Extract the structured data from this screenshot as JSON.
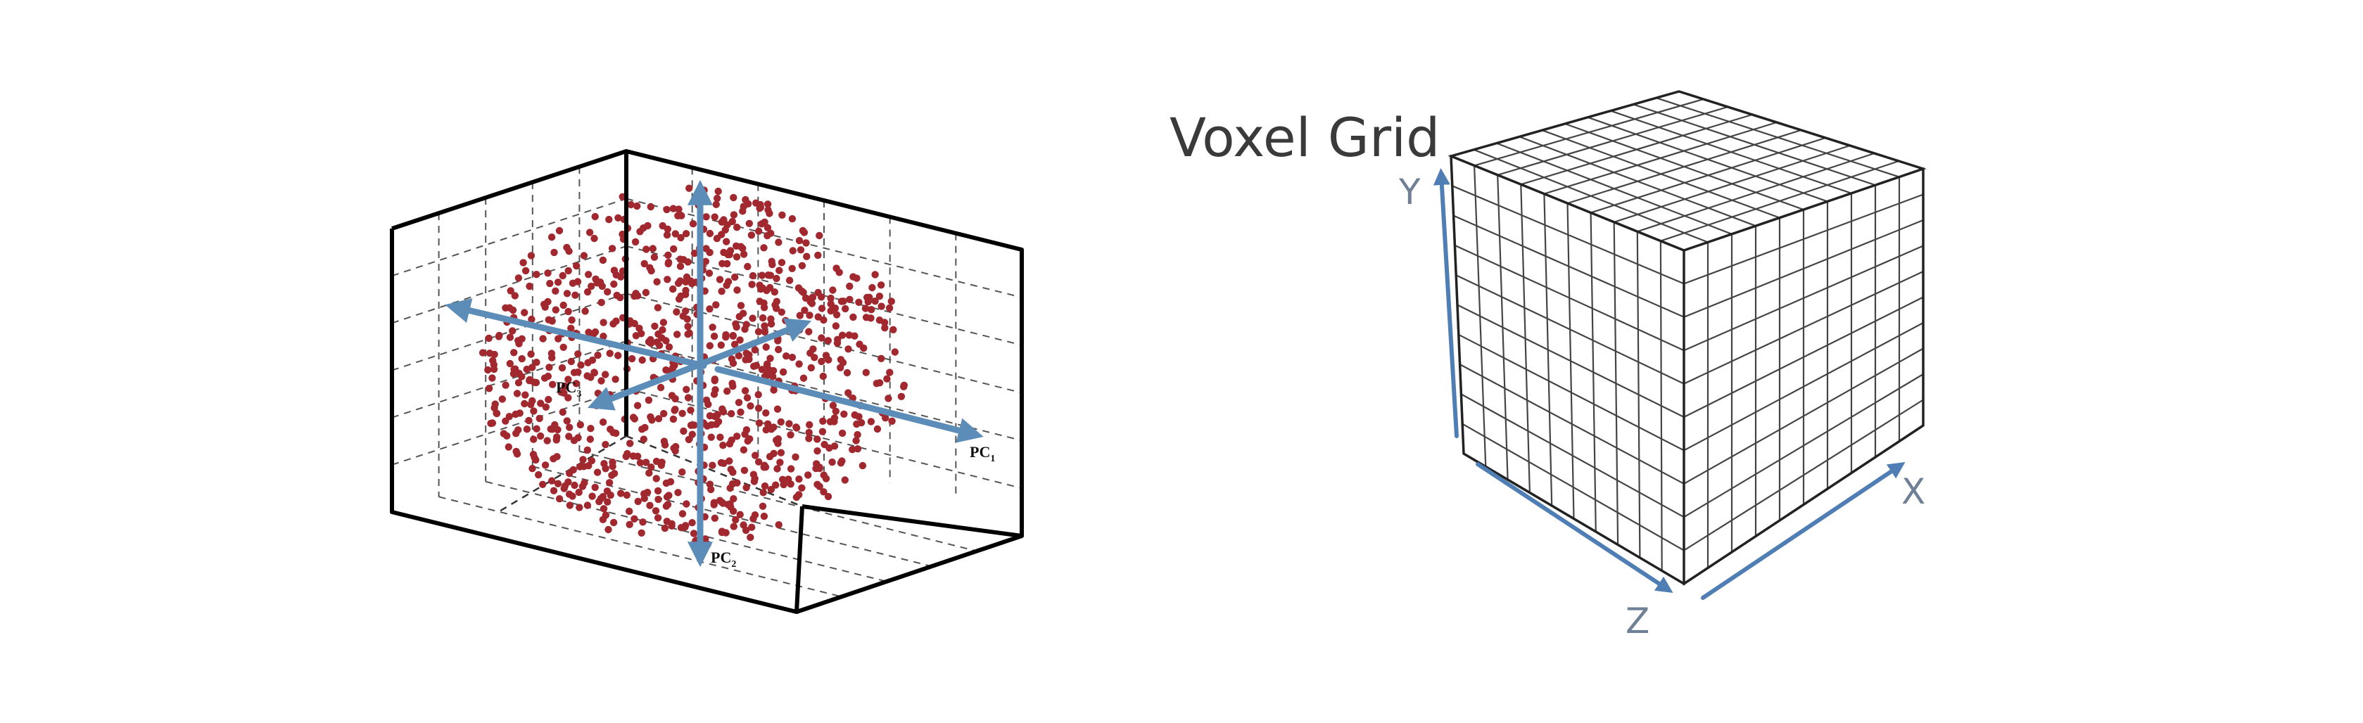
{
  "pca_figure": {
    "labels": {
      "pc1": {
        "main": "PC",
        "sub": "1"
      },
      "pc2": {
        "main": "PC",
        "sub": "2"
      },
      "pc3": {
        "main": "PC",
        "sub": "3"
      }
    },
    "colors": {
      "points": "#a0282e",
      "arrows": "#5b8db8",
      "box": "#000000",
      "grid": "#555555"
    }
  },
  "voxel_figure": {
    "title": "Voxel Grid",
    "axes": {
      "x": "X",
      "y": "Y",
      "z": "Z"
    },
    "grid_divisions": 10,
    "colors": {
      "axes": "#4f7eb5",
      "grid": "#444444",
      "label": "#6f7f96"
    }
  }
}
